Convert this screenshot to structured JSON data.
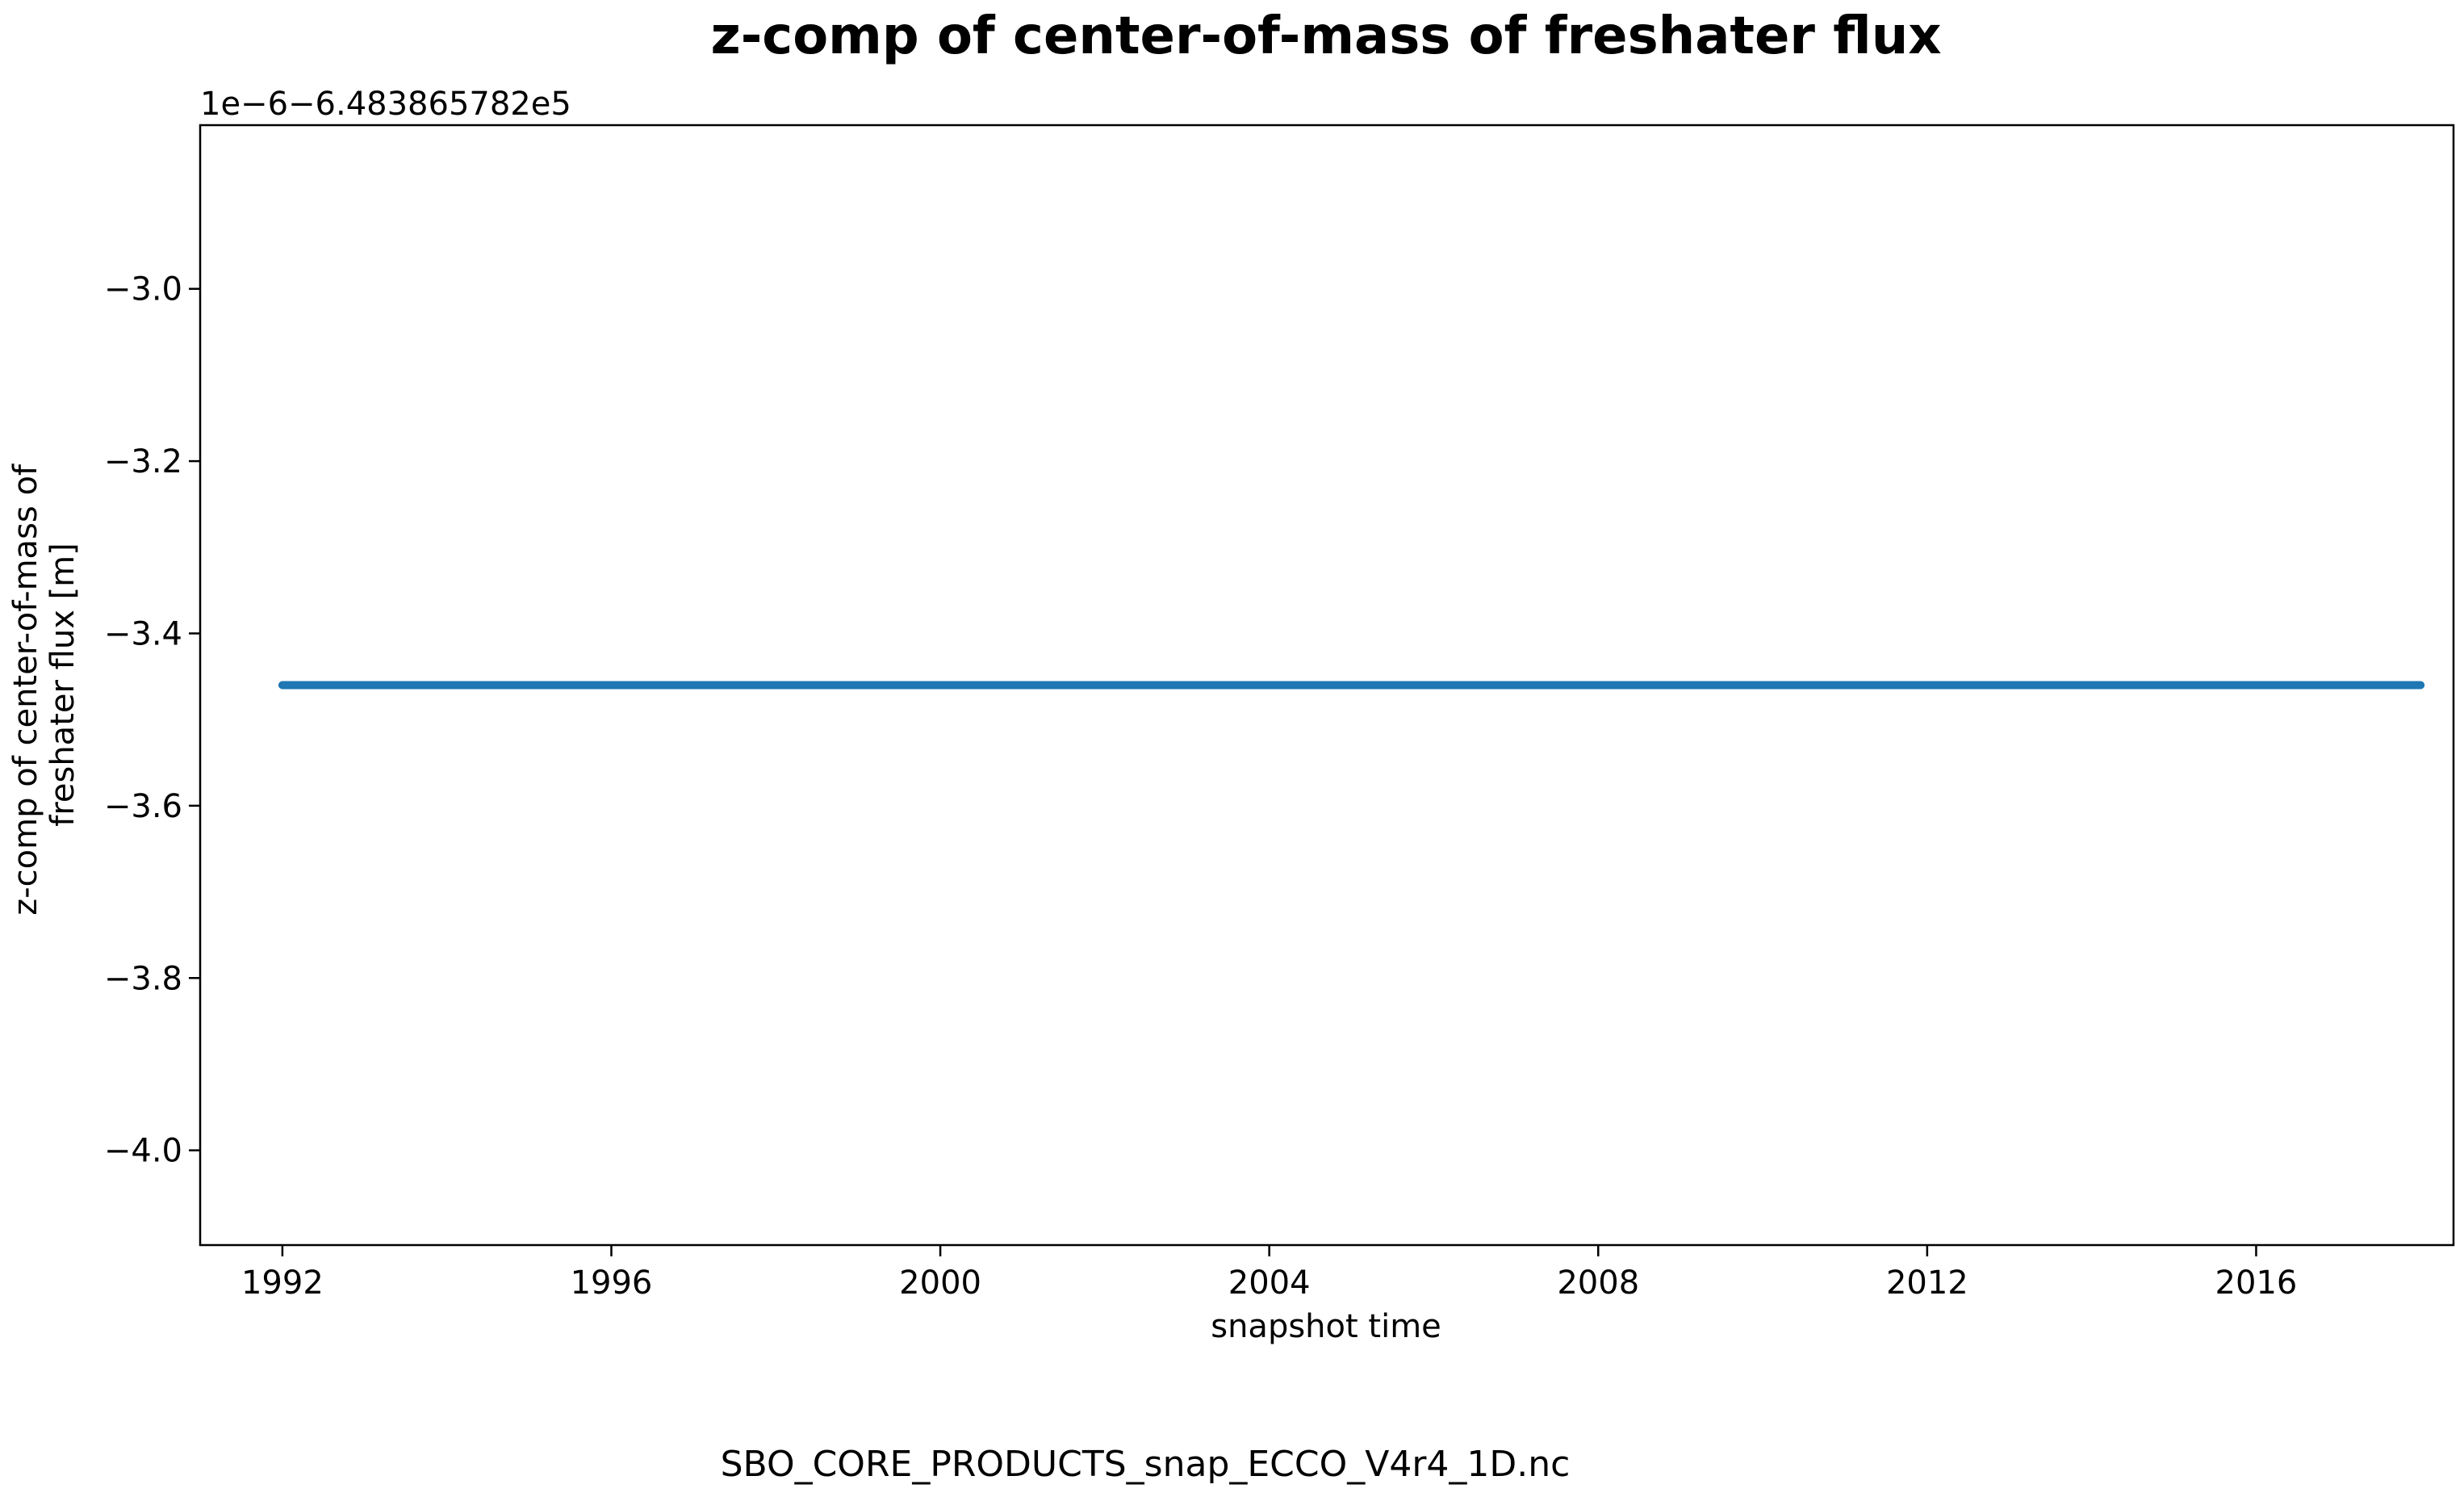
{
  "chart_data": {
    "type": "line",
    "title": "z-comp of center-of-mass of freshater flux",
    "xlabel": "snapshot time",
    "ylabel_lines": [
      "z-comp of center-of-mass of",
      "freshater flux [m]"
    ],
    "offset_text": "1e−6−6.483865782e5",
    "y_scale": 1e-06,
    "y_offset": -648386.5782,
    "x_range": [
      1991.0,
      2018.4
    ],
    "ylim": [
      -4.11,
      -2.81
    ],
    "x_ticks": [
      1992,
      1996,
      2000,
      2004,
      2008,
      2012,
      2016
    ],
    "x_tick_labels": [
      "1992",
      "1996",
      "2000",
      "2004",
      "2008",
      "2012",
      "2016"
    ],
    "y_ticks": [
      -3.0,
      -3.2,
      -3.4,
      -3.6,
      -3.8,
      -4.0
    ],
    "y_tick_labels": [
      "−3.0",
      "−3.2",
      "−3.4",
      "−3.6",
      "−3.8",
      "−4.0"
    ],
    "series": [
      {
        "color": "#1f77b4",
        "x": [
          1992.0,
          2018.0
        ],
        "y": [
          -3.46,
          -3.46
        ]
      }
    ],
    "grid": false,
    "legend": "none"
  },
  "caption": "SBO_CORE_PRODUCTS_snap_ECCO_V4r4_1D.nc"
}
